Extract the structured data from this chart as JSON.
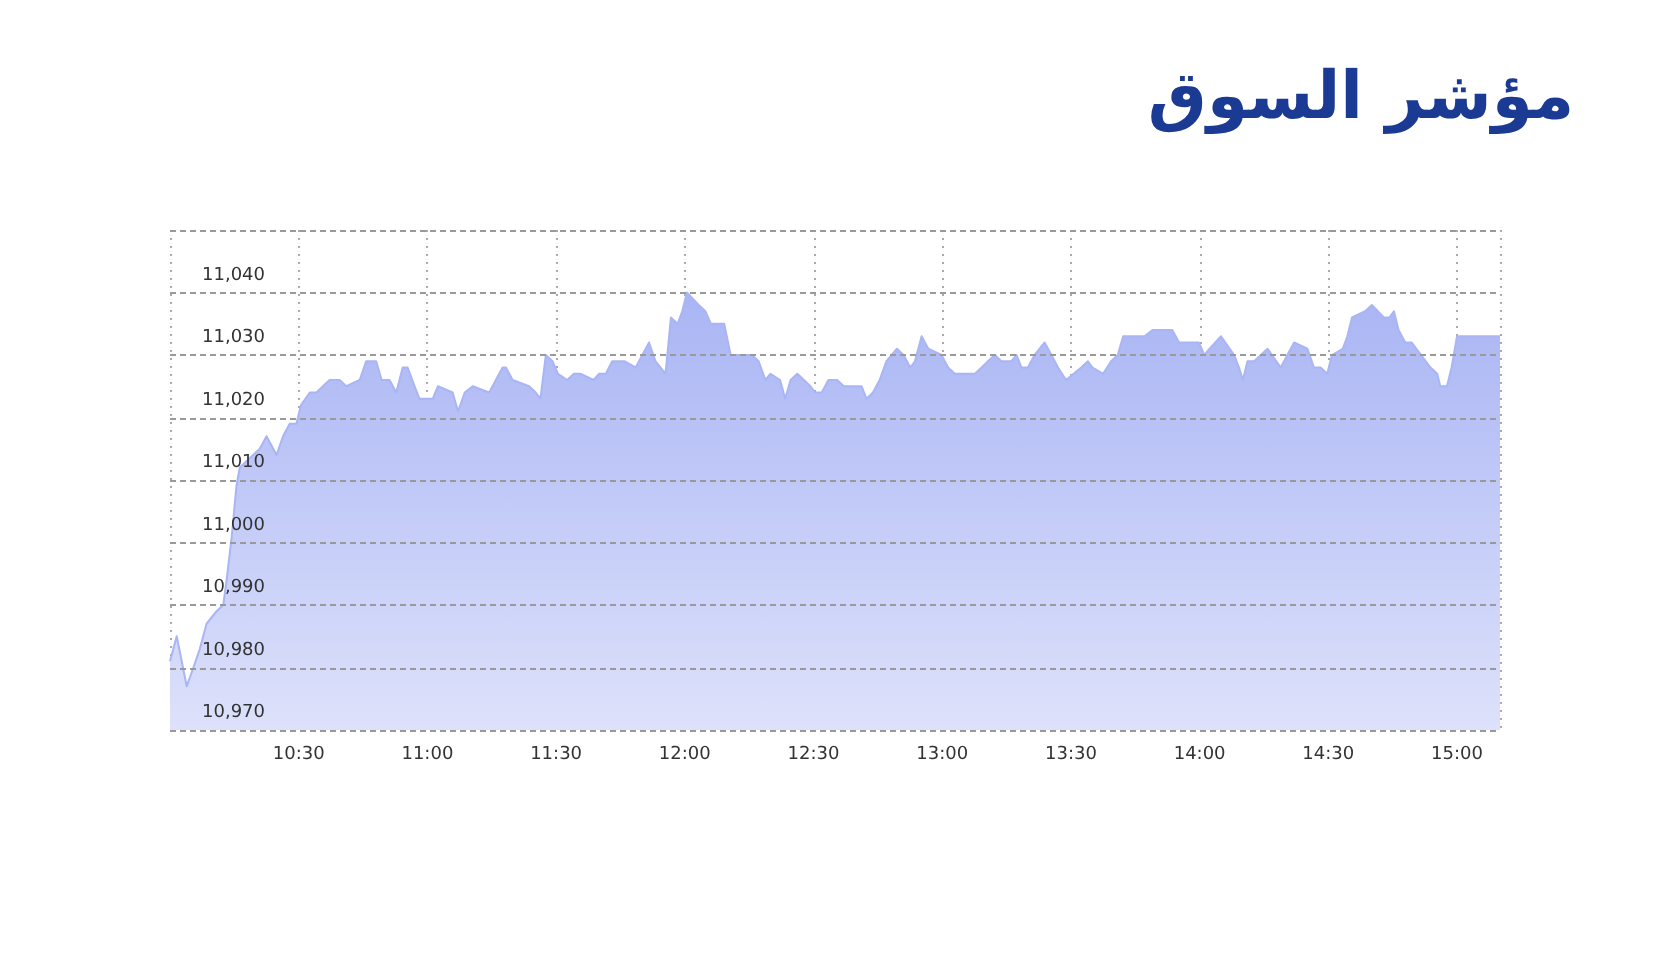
{
  "chart_data": {
    "type": "area",
    "title": "مؤشر السوق",
    "color": "#a9b5f4",
    "x": [
      10.0,
      10.026,
      10.065,
      10.091,
      10.116,
      10.142,
      10.181,
      10.207,
      10.22,
      10.24,
      10.258,
      10.271,
      10.323,
      10.349,
      10.375,
      10.388,
      10.414,
      10.439,
      10.465,
      10.491,
      10.509,
      10.543,
      10.569,
      10.594,
      10.62,
      10.659,
      10.685,
      10.737,
      10.762,
      10.801,
      10.822,
      10.853,
      10.879,
      10.904,
      10.923,
      10.969,
      10.995,
      11.021,
      11.041,
      11.098,
      11.119,
      11.145,
      11.176,
      11.24,
      11.292,
      11.305,
      11.331,
      11.395,
      11.421,
      11.439,
      11.46,
      11.486,
      11.507,
      11.543,
      11.569,
      11.594,
      11.646,
      11.667,
      11.693,
      11.718,
      11.765,
      11.809,
      11.835,
      11.861,
      11.886,
      11.925,
      11.946,
      11.972,
      11.99,
      12.008,
      12.054,
      12.08,
      12.101,
      12.153,
      12.178,
      12.235,
      12.261,
      12.287,
      12.313,
      12.333,
      12.37,
      12.39,
      12.411,
      12.437,
      12.488,
      12.507,
      12.532,
      12.558,
      12.592,
      12.618,
      12.687,
      12.706,
      12.731,
      12.757,
      12.783,
      12.804,
      12.824,
      12.85,
      12.876,
      12.894,
      12.92,
      12.946,
      12.997,
      13.023,
      13.049,
      13.127,
      13.153,
      13.178,
      13.204,
      13.23,
      13.269,
      13.289,
      13.308,
      13.333,
      13.359,
      13.398,
      13.424,
      13.45,
      13.481,
      13.54,
      13.566,
      13.584,
      13.625,
      13.656,
      13.682,
      13.703,
      13.76,
      13.786,
      13.817,
      13.868,
      13.894,
      13.92,
      13.997,
      14.018,
      14.039,
      14.083,
      14.134,
      14.153,
      14.168,
      14.186,
      14.212,
      14.238,
      14.264,
      14.315,
      14.341,
      14.367,
      14.419,
      14.444,
      14.47,
      14.496,
      14.514,
      14.556,
      14.574,
      14.592,
      14.643,
      14.669,
      14.716,
      14.737,
      14.755,
      14.773,
      14.799,
      14.824,
      14.897,
      14.923,
      14.935,
      14.961,
      14.979,
      15.0,
      15.167
    ],
    "values": [
      10981,
      10985,
      10977,
      10980,
      10983,
      10987,
      10989,
      10990,
      10994,
      11001,
      11009,
      11012,
      11014,
      11015,
      11017,
      11016,
      11014,
      11017,
      11019,
      11019,
      11022,
      11024,
      11024,
      11025,
      11026,
      11026,
      11025,
      11026,
      11029,
      11029,
      11026,
      11026,
      11024,
      11028,
      11028,
      11023,
      11023,
      11023,
      11025,
      11024,
      11021,
      11024,
      11025,
      11024,
      11028,
      11028,
      11026,
      11025,
      11024,
      11023,
      11030,
      11029,
      11027,
      11026,
      11027,
      11027,
      11026,
      11027,
      11027,
      11029,
      11029,
      11028,
      11030,
      11032,
      11029,
      11027,
      11036,
      11035,
      11037,
      11040,
      11038,
      11037,
      11035,
      11035,
      11030,
      11030,
      11030,
      11029,
      11026,
      11027,
      11026,
      11023,
      11026,
      11027,
      11025,
      11024,
      11024,
      11026,
      11026,
      11025,
      11025,
      11023,
      11024,
      11026,
      11029,
      11030,
      11031,
      11030,
      11028,
      11029,
      11033,
      11031,
      11030,
      11028,
      11027,
      11027,
      11028,
      11029,
      11030,
      11029,
      11029,
      11030,
      11028,
      11028,
      11030,
      11032,
      11030,
      11028,
      11026,
      11028,
      11029,
      11028,
      11027,
      11029,
      11030,
      11033,
      11033,
      11033,
      11034,
      11034,
      11034,
      11032,
      11032,
      11030,
      11031,
      11033,
      11030,
      11028,
      11026,
      11029,
      11029,
      11030,
      11031,
      11028,
      11030,
      11032,
      11031,
      11028,
      11028,
      11027,
      11030,
      11031,
      11033,
      11036,
      11037,
      11038,
      11036,
      11036,
      11037,
      11034,
      11032,
      11032,
      11028,
      11027,
      11025,
      11025,
      11028,
      11033,
      11033
    ],
    "xlim": [
      10,
      15.167
    ],
    "xticks": [
      {
        "value": 10,
        "label": null
      },
      {
        "value": 10.5,
        "label": "10:30"
      },
      {
        "value": 11,
        "label": "11:00"
      },
      {
        "value": 11.5,
        "label": "11:30"
      },
      {
        "value": 12,
        "label": "12:00"
      },
      {
        "value": 12.5,
        "label": "12:30"
      },
      {
        "value": 13,
        "label": "13:00"
      },
      {
        "value": 13.5,
        "label": "13:30"
      },
      {
        "value": 14,
        "label": "14:00"
      },
      {
        "value": 14.5,
        "label": "14:30"
      },
      {
        "value": 15,
        "label": "15:00"
      }
    ],
    "ylim": [
      10970,
      11050
    ],
    "yticks": [
      {
        "value": 10970,
        "label": "10,970"
      },
      {
        "value": 10980,
        "label": "10,980"
      },
      {
        "value": 10990,
        "label": "10,990"
      },
      {
        "value": 11000,
        "label": "11,000"
      },
      {
        "value": 11010,
        "label": "11,010"
      },
      {
        "value": 11020,
        "label": "11,020"
      },
      {
        "value": 11030,
        "label": "11,030"
      },
      {
        "value": 11040,
        "label": "11,040"
      },
      {
        "value": 11050,
        "label": null
      }
    ],
    "grid": true
  }
}
